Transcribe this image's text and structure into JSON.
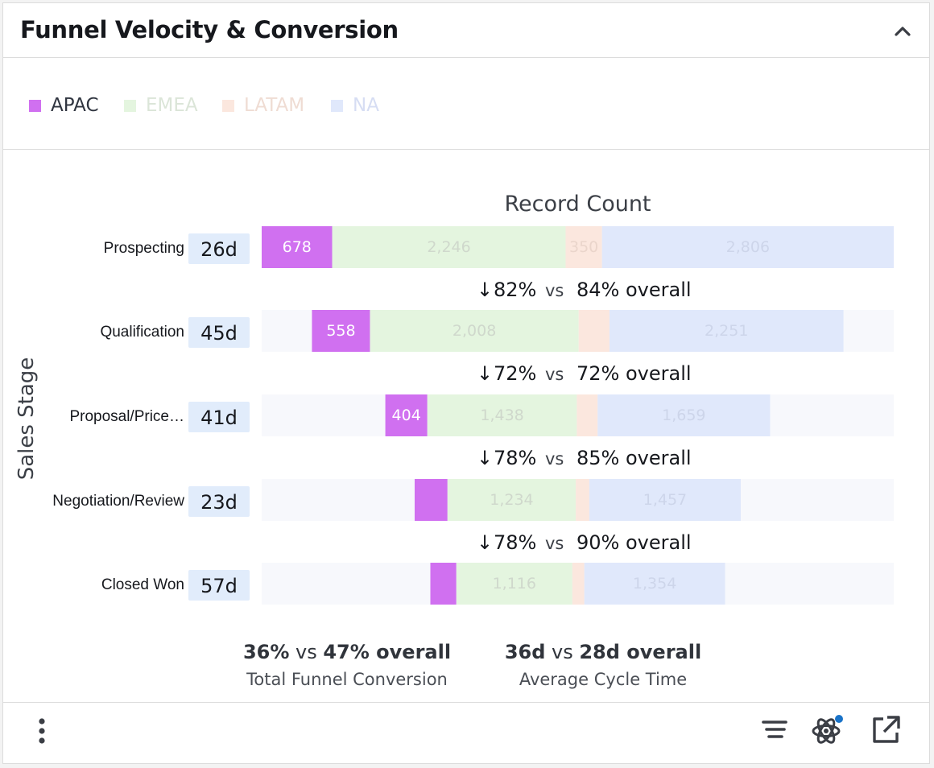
{
  "header": {
    "title": "Funnel Velocity & Conversion"
  },
  "legend": [
    {
      "label": "APAC",
      "color": "#d070f0",
      "text_color": "#303540"
    },
    {
      "label": "EMEA",
      "color": "#e4f5df",
      "text_color": "#dbe5d8"
    },
    {
      "label": "LATAM",
      "color": "#fbe7de",
      "text_color": "#efdcd3"
    },
    {
      "label": "NA",
      "color": "#e0e8fb",
      "text_color": "#d6ddf3"
    }
  ],
  "chart_data": {
    "type": "bar",
    "title": "Record Count",
    "ylabel": "Sales Stage",
    "categories": [
      "Prospecting",
      "Qualification",
      "Proposal/Price…",
      "Negotiation/Review",
      "Closed Won"
    ],
    "cycle_times": [
      "26d",
      "45d",
      "41d",
      "23d",
      "57d"
    ],
    "series": [
      {
        "name": "APAC",
        "color": "#d070f0",
        "values": [
          678,
          558,
          404,
          316,
          250
        ],
        "labels": [
          "678",
          "558",
          "404",
          "",
          ""
        ]
      },
      {
        "name": "EMEA",
        "color": "#e4f5df",
        "values": [
          2246,
          2008,
          1438,
          1234,
          1116
        ],
        "labels": [
          "2,246",
          "2,008",
          "1,438",
          "1,234",
          "1,116"
        ]
      },
      {
        "name": "LATAM",
        "color": "#fbe7de",
        "values": [
          350,
          296,
          200,
          130,
          115
        ],
        "labels": [
          "350",
          "",
          "",
          "",
          ""
        ]
      },
      {
        "name": "NA",
        "color": "#e0e8fb",
        "values": [
          2806,
          2251,
          1659,
          1457,
          1354
        ],
        "labels": [
          "2,806",
          "2,251",
          "1,659",
          "1,457",
          "1,354"
        ]
      }
    ],
    "conversions": [
      {
        "value": "82%",
        "vs": "vs",
        "overall": "84% overall"
      },
      {
        "value": "72%",
        "vs": "vs",
        "overall": "72% overall"
      },
      {
        "value": "78%",
        "vs": "vs",
        "overall": "85% overall"
      },
      {
        "value": "78%",
        "vs": "vs",
        "overall": "90% overall"
      }
    ]
  },
  "summary": [
    {
      "value": "36%",
      "vs": "vs",
      "overall": "47% overall",
      "label": "Total Funnel Conversion"
    },
    {
      "value": "36d",
      "vs": "vs",
      "overall": "28d overall",
      "label": "Average Cycle Time"
    }
  ],
  "footer": {
    "icons": [
      "more-vertical-icon",
      "filter-lines-icon",
      "atom-icon",
      "external-link-icon"
    ],
    "notification_dot_color": "#1a73c8"
  }
}
